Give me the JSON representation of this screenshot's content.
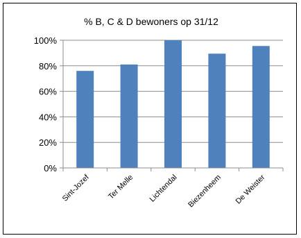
{
  "colors": {
    "bar": "#4f81bd",
    "grid": "#8c8c8c",
    "axis": "#8c8c8c",
    "border": "#000000"
  },
  "chart_data": {
    "type": "bar",
    "title": "% B, C & D bewoners op 31/12",
    "categories": [
      "Sint-Jozef",
      "Ter Melle",
      "Lichtendal",
      "Biezenheem",
      "De Weister"
    ],
    "values": [
      76,
      81,
      100,
      89.5,
      95.5
    ],
    "ylim": [
      0,
      100
    ],
    "yticks": [
      "0%",
      "20%",
      "40%",
      "60%",
      "80%",
      "100%"
    ],
    "ytick_values": [
      0,
      20,
      40,
      60,
      80,
      100
    ],
    "xlabel": "",
    "ylabel": "",
    "grid": true,
    "legend": "none"
  }
}
